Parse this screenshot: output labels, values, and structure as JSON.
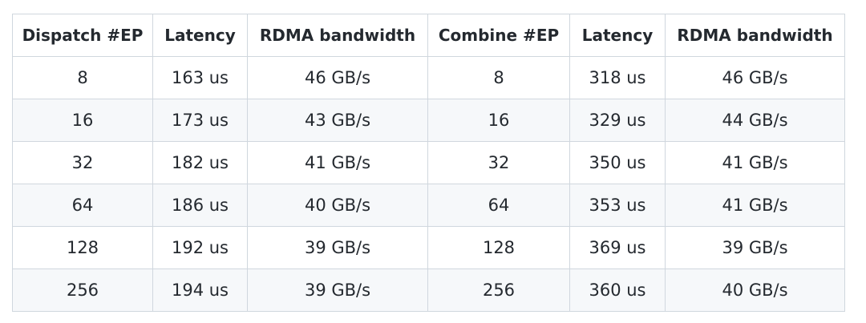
{
  "table": {
    "headers": [
      "Dispatch #EP",
      "Latency",
      "RDMA bandwidth",
      "Combine #EP",
      "Latency",
      "RDMA bandwidth"
    ],
    "rows": [
      [
        "8",
        "163 us",
        "46 GB/s",
        "8",
        "318 us",
        "46 GB/s"
      ],
      [
        "16",
        "173 us",
        "43 GB/s",
        "16",
        "329 us",
        "44 GB/s"
      ],
      [
        "32",
        "182 us",
        "41 GB/s",
        "32",
        "350 us",
        "41 GB/s"
      ],
      [
        "64",
        "186 us",
        "40 GB/s",
        "64",
        "353 us",
        "41 GB/s"
      ],
      [
        "128",
        "192 us",
        "39 GB/s",
        "128",
        "369 us",
        "39 GB/s"
      ],
      [
        "256",
        "194 us",
        "39 GB/s",
        "256",
        "360 us",
        "40 GB/s"
      ]
    ]
  }
}
